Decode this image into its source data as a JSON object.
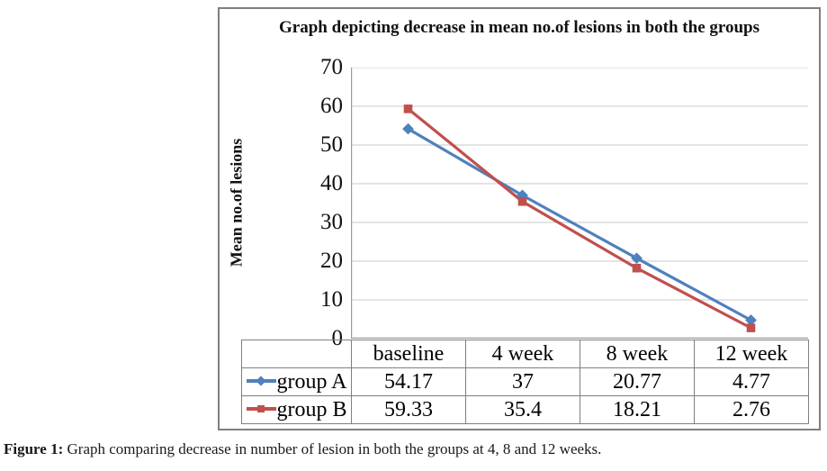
{
  "chart_data": {
    "type": "line",
    "title": "Graph depicting decrease in mean no.of lesions in both the groups",
    "ylabel": "Mean no.of lesions",
    "xlabel": "",
    "categories": [
      "baseline",
      "4 week",
      "8 week",
      "12 week"
    ],
    "series": [
      {
        "name": "group A",
        "color": "#4f81bd",
        "marker": "diamond",
        "values": [
          54.17,
          37,
          20.77,
          4.77
        ],
        "display_values": [
          "54.17",
          "37",
          "20.77",
          "4.77"
        ]
      },
      {
        "name": "group B",
        "color": "#c0504d",
        "marker": "square",
        "values": [
          59.33,
          35.4,
          18.21,
          2.76
        ],
        "display_values": [
          "59.33",
          "35.4",
          "18.21",
          "2.76"
        ]
      }
    ],
    "ylim": [
      0,
      70
    ],
    "yticks": [
      70,
      60,
      50,
      40,
      30,
      20,
      10,
      0
    ],
    "grid": true,
    "gridline_color": "#d4d4d4",
    "axis_color": "#9b9b9b",
    "legend_position": "data-table-left"
  },
  "figure": {
    "caption_label": "Figure 1:",
    "caption_text": " Graph comparing decrease in number of lesion in both the groups at 4, 8 and 12 weeks."
  }
}
